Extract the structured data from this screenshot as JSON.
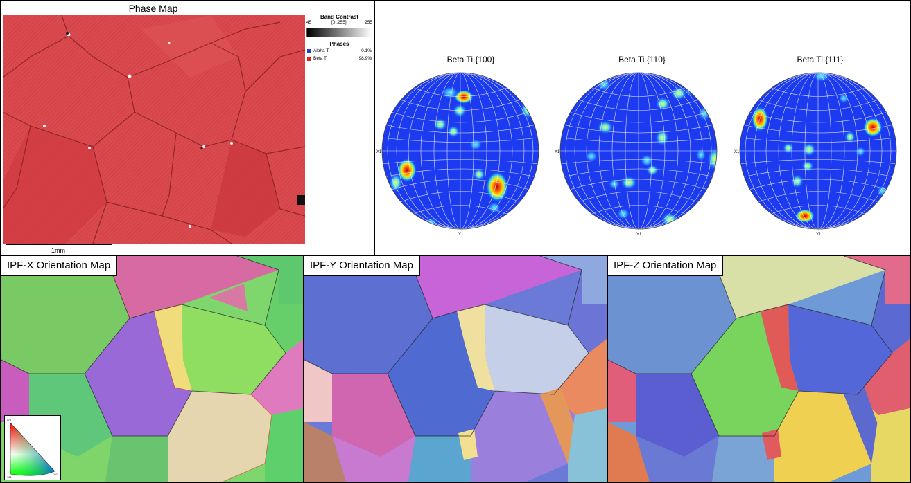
{
  "phase_map": {
    "title": "Phase Map",
    "scalebar_label": "1mm",
    "band_contrast": {
      "title": "Band Contrast",
      "min": "45",
      "range": "[0..255]",
      "max": "255"
    },
    "phases": {
      "title": "Phases",
      "items": [
        {
          "name": "Alpha Ti",
          "percent": "0.1%",
          "color": "#1f3fd0"
        },
        {
          "name": "Beta Ti",
          "percent": "98.9%",
          "color": "#dd2020"
        }
      ]
    }
  },
  "pole_figures": {
    "items": [
      {
        "title": "Beta Ti {100}"
      },
      {
        "title": "Beta Ti {110}"
      },
      {
        "title": "Beta Ti {111}"
      }
    ],
    "x_label": "X1",
    "y_label": "Y1"
  },
  "ipf_maps": [
    {
      "title": "IPF-X Orientation Map"
    },
    {
      "title": "IPF-Y Orientation Map"
    },
    {
      "title": "IPF-Z Orientation Map"
    }
  ],
  "ipf_key": {
    "corner_001": "001",
    "corner_101": "101",
    "corner_111": "111"
  }
}
